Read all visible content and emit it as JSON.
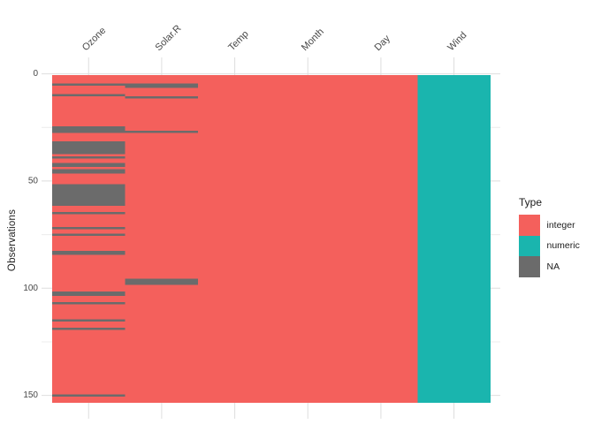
{
  "chart_data": {
    "type": "heatmap",
    "title": "",
    "ylabel": "Observations",
    "x_categories": [
      "Ozone",
      "Solar.R",
      "Temp",
      "Month",
      "Day",
      "Wind"
    ],
    "column_types": [
      "integer",
      "integer",
      "integer",
      "integer",
      "integer",
      "numeric"
    ],
    "n_observations": 153,
    "y_axis_reversed": true,
    "y_ticks": [
      0,
      50,
      100,
      150
    ],
    "y_tick_labels": [
      "0",
      "50",
      "100",
      "150"
    ],
    "y_minor_ticks": [
      25,
      75,
      125
    ],
    "na_rows": {
      "Ozone": [
        5,
        10,
        25,
        26,
        27,
        32,
        33,
        34,
        35,
        36,
        37,
        39,
        42,
        43,
        45,
        46,
        52,
        53,
        54,
        55,
        56,
        57,
        58,
        59,
        60,
        61,
        65,
        72,
        75,
        83,
        84,
        102,
        103,
        107,
        115,
        119,
        150
      ],
      "Solar.R": [
        5,
        6,
        11,
        27,
        96,
        97,
        98
      ],
      "Temp": [],
      "Month": [],
      "Day": [],
      "Wind": []
    },
    "legend": {
      "title": "Type",
      "position": "right",
      "items": [
        {
          "label": "integer",
          "color": "#F4605C"
        },
        {
          "label": "numeric",
          "color": "#1AB5AE"
        },
        {
          "label": "NA",
          "color": "#6B6B6B"
        }
      ]
    },
    "colors": {
      "integer": "#F4605C",
      "numeric": "#1AB5AE",
      "na": "#6B6B6B",
      "grid_major": "#DEDEDE",
      "grid_minor": "#ECECEC",
      "axis_text": "#474747",
      "background": "#FFFFFF"
    },
    "grid": true
  }
}
